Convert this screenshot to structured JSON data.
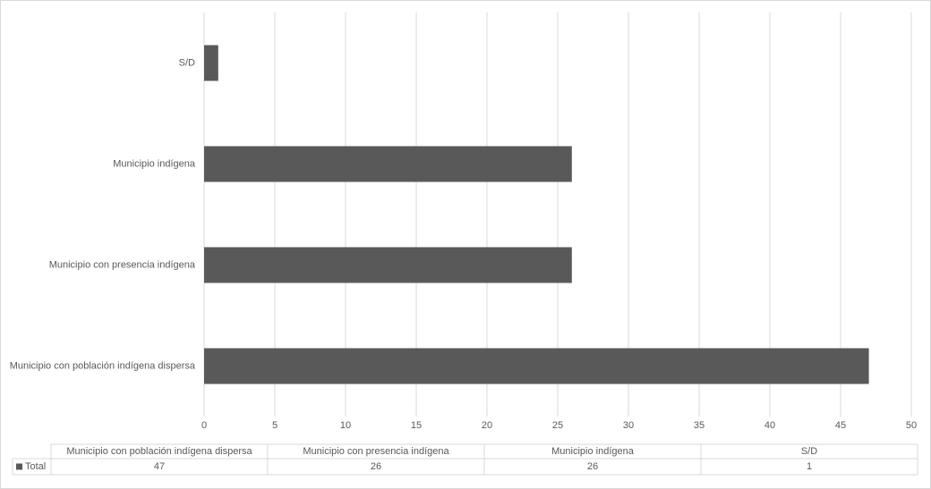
{
  "chart_data": {
    "type": "barh",
    "categories": [
      "Municipio con población indígena dispersa",
      "Municipio con presencia indígena",
      "Municipio indígena",
      "S/D"
    ],
    "series": [
      {
        "name": "Total",
        "color": "#595959",
        "values": [
          47,
          26,
          26,
          1
        ]
      }
    ],
    "xlim": [
      0,
      50
    ],
    "xticks": [
      0,
      5,
      10,
      15,
      20,
      25,
      30,
      35,
      40,
      45,
      50
    ],
    "grid": true
  }
}
